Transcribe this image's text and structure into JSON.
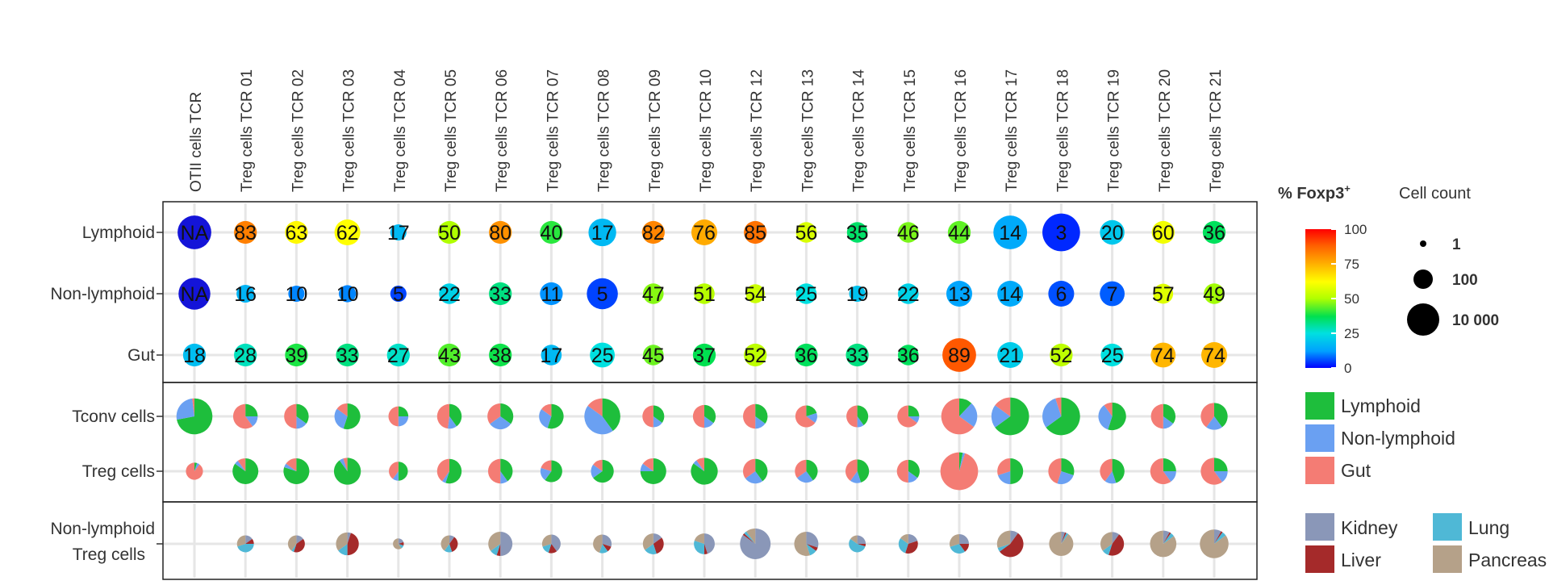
{
  "chart_data": {
    "type": "bubble-matrix",
    "columns": [
      "OTII cells TCR",
      "Treg cells  TCR 01",
      "Treg cells TCR 02",
      "Treg cells TCR 03",
      "Treg cells TCR 04",
      "Treg cells TCR 05",
      "Treg cells TCR 06",
      "Treg cells TCR 07",
      "Treg cells TCR 08",
      "Treg cells TCR 09",
      "Treg cells TCR 10",
      "Treg cells TCR 12",
      "Treg cells TCR 13",
      "Treg cells TCR 14",
      "Treg cells TCR 15",
      "Treg cells TCR 16",
      "Treg cells TCR 17",
      "Treg cells TCR 18",
      "Treg cells TCR 19",
      "Treg cells TCR 20",
      "Treg cells TCR 21"
    ],
    "foxp3_panel": {
      "rows": [
        "Lymphoid",
        "Non-lymphoid",
        "Gut"
      ],
      "values": [
        [
          "NA",
          "83",
          "63",
          "62",
          "17",
          "50",
          "80",
          "40",
          "17",
          "82",
          "76",
          "85",
          "56",
          "35",
          "46",
          "44",
          "14",
          "3",
          "20",
          "60",
          "36"
        ],
        [
          "NA",
          "16",
          "10",
          "10",
          "5",
          "22",
          "33",
          "11",
          "5",
          "47",
          "51",
          "54",
          "25",
          "19",
          "22",
          "13",
          "14",
          "6",
          "7",
          "57",
          "49"
        ],
        [
          "18",
          "28",
          "39",
          "33",
          "27",
          "43",
          "38",
          "17",
          "25",
          "45",
          "37",
          "52",
          "36",
          "33",
          "36",
          "89",
          "21",
          "52",
          "25",
          "74",
          "74"
        ]
      ],
      "cell_counts": [
        [
          1000,
          100,
          100,
          200,
          20,
          100,
          100,
          100,
          300,
          100,
          200,
          100,
          60,
          60,
          60,
          100,
          1000,
          2000,
          150,
          100,
          100
        ],
        [
          700,
          30,
          20,
          25,
          20,
          60,
          100,
          100,
          600,
          60,
          60,
          40,
          60,
          20,
          60,
          200,
          200,
          200,
          160,
          50,
          60
        ],
        [
          100,
          100,
          100,
          100,
          100,
          100,
          100,
          60,
          160,
          60,
          100,
          100,
          100,
          100,
          60,
          1000,
          200,
          100,
          100,
          160,
          200
        ]
      ]
    },
    "composition_panel": {
      "rows": [
        "Tconv cells",
        "Treg cells"
      ],
      "categories": [
        "Lymphoid",
        "Non-lymphoid",
        "Gut"
      ],
      "cell_counts": [
        [
          1500,
          150,
          150,
          200,
          50,
          150,
          200,
          150,
          1500,
          80,
          100,
          150,
          80,
          80,
          80,
          1500,
          2000,
          2000,
          300,
          150,
          250
        ],
        [
          25,
          200,
          200,
          250,
          40,
          150,
          150,
          80,
          100,
          200,
          250,
          150,
          100,
          120,
          100,
          2000,
          200,
          200,
          150,
          200,
          250
        ]
      ],
      "fractions": [
        [
          [
            0.72,
            0.26,
            0.02
          ],
          [
            0.25,
            0.15,
            0.6
          ],
          [
            0.35,
            0.15,
            0.5
          ],
          [
            0.55,
            0.3,
            0.15
          ],
          [
            0.25,
            0.25,
            0.5
          ],
          [
            0.4,
            0.12,
            0.48
          ],
          [
            0.35,
            0.3,
            0.35
          ],
          [
            0.55,
            0.3,
            0.15
          ],
          [
            0.4,
            0.45,
            0.15
          ],
          [
            0.35,
            0.15,
            0.5
          ],
          [
            0.35,
            0.15,
            0.5
          ],
          [
            0.35,
            0.15,
            0.5
          ],
          [
            0.2,
            0.15,
            0.65
          ],
          [
            0.4,
            0.1,
            0.5
          ],
          [
            0.25,
            0.1,
            0.65
          ],
          [
            0.12,
            0.23,
            0.65
          ],
          [
            0.65,
            0.2,
            0.15
          ],
          [
            0.65,
            0.3,
            0.05
          ],
          [
            0.55,
            0.35,
            0.1
          ],
          [
            0.35,
            0.15,
            0.5
          ],
          [
            0.4,
            0.2,
            0.4
          ]
        ],
        [
          [
            0.05,
            0.05,
            0.9
          ],
          [
            0.85,
            0.05,
            0.1
          ],
          [
            0.8,
            0.05,
            0.15
          ],
          [
            0.9,
            0.05,
            0.05
          ],
          [
            0.5,
            0.1,
            0.4
          ],
          [
            0.55,
            0.05,
            0.4
          ],
          [
            0.4,
            0.1,
            0.5
          ],
          [
            0.6,
            0.2,
            0.2
          ],
          [
            0.65,
            0.2,
            0.15
          ],
          [
            0.75,
            0.1,
            0.15
          ],
          [
            0.85,
            0.05,
            0.1
          ],
          [
            0.4,
            0.25,
            0.35
          ],
          [
            0.4,
            0.25,
            0.35
          ],
          [
            0.45,
            0.15,
            0.4
          ],
          [
            0.35,
            0.15,
            0.5
          ],
          [
            0.03,
            0.02,
            0.95
          ],
          [
            0.5,
            0.2,
            0.3
          ],
          [
            0.3,
            0.25,
            0.45
          ],
          [
            0.45,
            0.15,
            0.4
          ],
          [
            0.25,
            0.15,
            0.6
          ],
          [
            0.25,
            0.15,
            0.6
          ]
        ]
      ]
    },
    "nonlymphoid_panel": {
      "row_label": "Non-lymphoid\nTreg cells",
      "categories": [
        "Kidney",
        "Liver",
        "Lung",
        "Pancreas"
      ],
      "cell_counts": [
        0,
        50,
        50,
        250,
        8,
        50,
        350,
        80,
        80,
        150,
        150,
        1500,
        350,
        50,
        100,
        100,
        600,
        350,
        300,
        600,
        1000
      ],
      "fractions": [
        [
          0,
          0,
          0,
          0
        ],
        [
          0.15,
          0.1,
          0.45,
          0.3
        ],
        [
          0.15,
          0.4,
          0.05,
          0.4
        ],
        [
          0.05,
          0.45,
          0.15,
          0.35
        ],
        [
          0.2,
          0.1,
          0.1,
          0.6
        ],
        [
          0.1,
          0.35,
          0.15,
          0.4
        ],
        [
          0.5,
          0.05,
          0.1,
          0.35
        ],
        [
          0.4,
          0.15,
          0.15,
          0.3
        ],
        [
          0.3,
          0.1,
          0.15,
          0.45
        ],
        [
          0.15,
          0.3,
          0.2,
          0.35
        ],
        [
          0.45,
          0.05,
          0.3,
          0.2
        ],
        [
          0.85,
          0.02,
          0.03,
          0.1
        ],
        [
          0.3,
          0.05,
          0.1,
          0.55
        ],
        [
          0.25,
          0.05,
          0.55,
          0.15
        ],
        [
          0.2,
          0.35,
          0.3,
          0.15
        ],
        [
          0.25,
          0.15,
          0.3,
          0.3
        ],
        [
          0.1,
          0.55,
          0.05,
          0.3
        ],
        [
          0.05,
          0.02,
          0.03,
          0.9
        ],
        [
          0.1,
          0.45,
          0.1,
          0.35
        ],
        [
          0.08,
          0.02,
          0.05,
          0.85
        ],
        [
          0.08,
          0.02,
          0.05,
          0.85
        ]
      ]
    },
    "color_legend": {
      "title": "% Foxp3",
      "title_sup": "+",
      "ticks": [
        "100",
        "75",
        "50",
        "25",
        "0"
      ]
    },
    "size_legend": {
      "title": "Cell count",
      "entries": [
        {
          "label": "1",
          "count": 1
        },
        {
          "label": "100",
          "count": 100
        },
        {
          "label": "10 000",
          "count": 10000
        }
      ]
    },
    "category_legend_1": [
      {
        "label": "Lymphoid",
        "color": "#1ebe3c"
      },
      {
        "label": "Non-lymphoid",
        "color": "#6aa0f2"
      },
      {
        "label": "Gut",
        "color": "#f47c74"
      }
    ],
    "category_legend_2": [
      {
        "label": "Kidney",
        "color": "#8a97b8"
      },
      {
        "label": "Lung",
        "color": "#4fb8d6"
      },
      {
        "label": "Liver",
        "color": "#a52a2a"
      },
      {
        "label": "Pancreas",
        "color": "#b5a189"
      }
    ]
  }
}
